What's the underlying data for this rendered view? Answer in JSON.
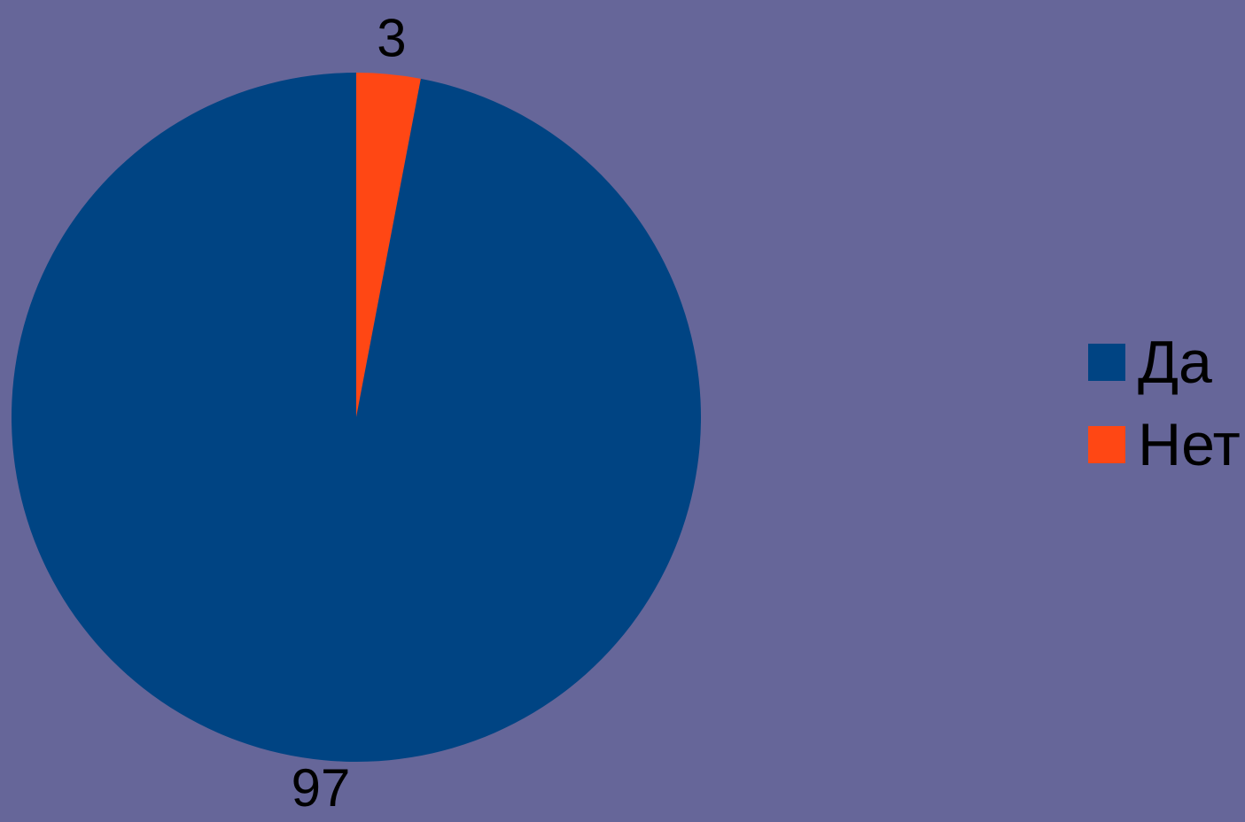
{
  "chart_data": {
    "type": "pie",
    "title": "",
    "legend_placement": "right",
    "series": [
      {
        "values": [
          97,
          3
        ]
      }
    ],
    "categories": [
      "Да",
      "Нет"
    ],
    "data_labels": [
      "97",
      "3"
    ],
    "colors": [
      "#004483",
      "#ff4714"
    ]
  },
  "background": "#666699"
}
